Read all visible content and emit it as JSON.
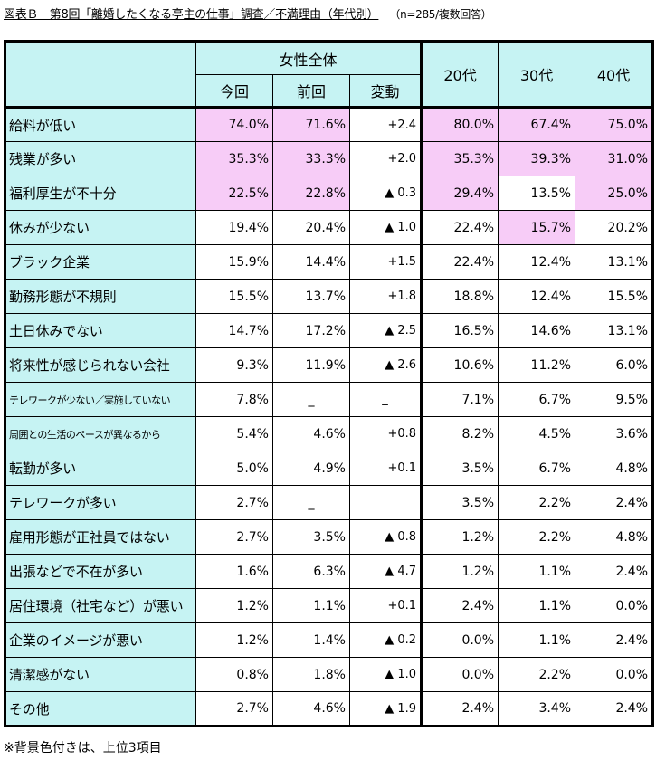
{
  "title": "図表Ｂ　第8回「離婚したくなる亭主の仕事」調査／不満理由（年代別）",
  "note": "（n=285/複数回答）",
  "header": {
    "group": "女性全体",
    "now": "今回",
    "prev": "前回",
    "change": "変動",
    "age20": "20代",
    "age30": "30代",
    "age40": "40代"
  },
  "highlight_color": "#f7ccf7",
  "label_bg_color": "#c6f3f3",
  "rows": [
    {
      "label": "給料が低い",
      "now": "74.0%",
      "prev": "71.6%",
      "change": "+2.4",
      "a20": "80.0%",
      "a30": "67.4%",
      "a40": "75.0%"
    },
    {
      "label": "残業が多い",
      "now": "35.3%",
      "prev": "33.3%",
      "change": "+2.0",
      "a20": "35.3%",
      "a30": "39.3%",
      "a40": "31.0%"
    },
    {
      "label": "福利厚生が不十分",
      "now": "22.5%",
      "prev": "22.8%",
      "change": "▲ 0.3",
      "a20": "29.4%",
      "a30": "13.5%",
      "a40": "25.0%"
    },
    {
      "label": "休みが少ない",
      "now": "19.4%",
      "prev": "20.4%",
      "change": "▲ 1.0",
      "a20": "22.4%",
      "a30": "15.7%",
      "a40": "20.2%"
    },
    {
      "label": "ブラック企業",
      "now": "15.9%",
      "prev": "14.4%",
      "change": "+1.5",
      "a20": "22.4%",
      "a30": "12.4%",
      "a40": "13.1%"
    },
    {
      "label": "勤務形態が不規則",
      "now": "15.5%",
      "prev": "13.7%",
      "change": "+1.8",
      "a20": "18.8%",
      "a30": "12.4%",
      "a40": "15.5%"
    },
    {
      "label": "土日休みでない",
      "now": "14.7%",
      "prev": "17.2%",
      "change": "▲ 2.5",
      "a20": "16.5%",
      "a30": "14.6%",
      "a40": "13.1%"
    },
    {
      "label": "将来性が感じられない会社",
      "now": "9.3%",
      "prev": "11.9%",
      "change": "▲ 2.6",
      "a20": "10.6%",
      "a30": "11.2%",
      "a40": "6.0%"
    },
    {
      "label": "テレワークが少ない／実施していない",
      "now": "7.8%",
      "prev": "_",
      "change": "_",
      "a20": "7.1%",
      "a30": "6.7%",
      "a40": "9.5%"
    },
    {
      "label": "周囲との生活のペースが異なるから",
      "now": "5.4%",
      "prev": "4.6%",
      "change": "+0.8",
      "a20": "8.2%",
      "a30": "4.5%",
      "a40": "3.6%"
    },
    {
      "label": "転勤が多い",
      "now": "5.0%",
      "prev": "4.9%",
      "change": "+0.1",
      "a20": "3.5%",
      "a30": "6.7%",
      "a40": "4.8%"
    },
    {
      "label": "テレワークが多い",
      "now": "2.7%",
      "prev": "_",
      "change": "_",
      "a20": "3.5%",
      "a30": "2.2%",
      "a40": "2.4%"
    },
    {
      "label": "雇用形態が正社員ではない",
      "now": "2.7%",
      "prev": "3.5%",
      "change": "▲ 0.8",
      "a20": "1.2%",
      "a30": "2.2%",
      "a40": "4.8%"
    },
    {
      "label": "出張などで不在が多い",
      "now": "1.6%",
      "prev": "6.3%",
      "change": "▲ 4.7",
      "a20": "1.2%",
      "a30": "1.1%",
      "a40": "2.4%"
    },
    {
      "label": "居住環境（社宅など）が悪い",
      "now": "1.2%",
      "prev": "1.1%",
      "change": "+0.1",
      "a20": "2.4%",
      "a30": "1.1%",
      "a40": "0.0%"
    },
    {
      "label": "企業のイメージが悪い",
      "now": "1.2%",
      "prev": "1.4%",
      "change": "▲ 0.2",
      "a20": "0.0%",
      "a30": "1.1%",
      "a40": "2.4%"
    },
    {
      "label": "清潔感がない",
      "now": "0.8%",
      "prev": "1.8%",
      "change": "▲ 1.0",
      "a20": "0.0%",
      "a30": "2.2%",
      "a40": "0.0%"
    },
    {
      "label": "その他",
      "now": "2.7%",
      "prev": "4.6%",
      "change": "▲ 1.9",
      "a20": "2.4%",
      "a30": "3.4%",
      "a40": "2.4%"
    }
  ],
  "highlights": [
    {
      "row": 0,
      "cols": [
        "now",
        "prev",
        "a20",
        "a30",
        "a40"
      ]
    },
    {
      "row": 1,
      "cols": [
        "now",
        "prev",
        "a20",
        "a30",
        "a40"
      ]
    },
    {
      "row": 2,
      "cols": [
        "now",
        "prev",
        "a20",
        "a40"
      ]
    },
    {
      "row": 3,
      "cols": [
        "a30"
      ]
    }
  ],
  "footnote": "※背景色付きは、上位3項目"
}
